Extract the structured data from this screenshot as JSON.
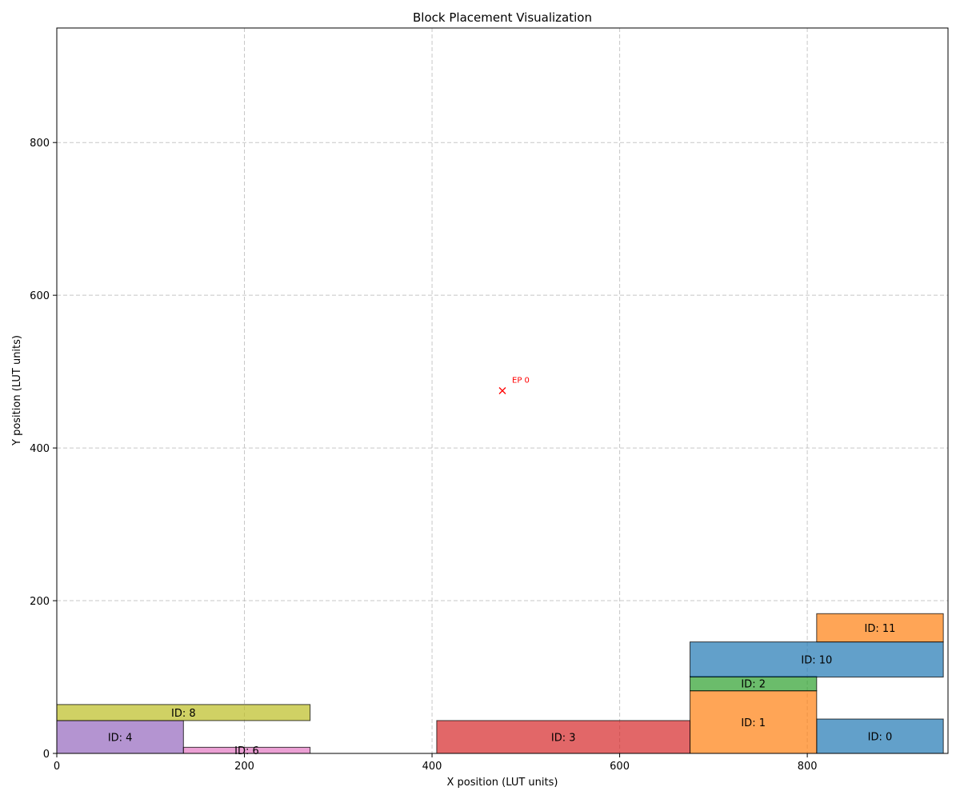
{
  "chart_data": {
    "type": "rectangles",
    "title": "Block Placement Visualization",
    "xlabel": "X position (LUT units)",
    "ylabel": "Y position (LUT units)",
    "xlim": [
      0,
      950
    ],
    "ylim": [
      0,
      950
    ],
    "xticks": [
      0,
      200,
      400,
      600,
      800
    ],
    "yticks": [
      0,
      200,
      400,
      600,
      800
    ],
    "grid": true,
    "blocks": [
      {
        "label": "ID: 0",
        "x": 810,
        "y": 0,
        "w": 135,
        "h": 45,
        "color": "#1f77b4"
      },
      {
        "label": "ID: 1",
        "x": 675,
        "y": 0,
        "w": 135,
        "h": 82,
        "color": "#ff7f0e"
      },
      {
        "label": "ID: 2",
        "x": 675,
        "y": 82,
        "w": 135,
        "h": 19,
        "color": "#2ca02c"
      },
      {
        "label": "ID: 3",
        "x": 405,
        "y": 0,
        "w": 270,
        "h": 43,
        "color": "#d62728"
      },
      {
        "label": "ID: 4",
        "x": 0,
        "y": 0,
        "w": 135,
        "h": 43,
        "color": "#9467bd"
      },
      {
        "label": "ID: 6",
        "x": 135,
        "y": 0,
        "w": 135,
        "h": 8,
        "color": "#e377c2"
      },
      {
        "label": "ID: 8",
        "x": 0,
        "y": 43,
        "w": 270,
        "h": 21,
        "color": "#bcbd22"
      },
      {
        "label": "ID: 10",
        "x": 675,
        "y": 100,
        "w": 270,
        "h": 46,
        "color": "#1f77b4"
      },
      {
        "label": "ID: 11",
        "x": 810,
        "y": 146,
        "w": 135,
        "h": 37,
        "color": "#ff7f0e"
      }
    ],
    "points": [
      {
        "label": "EP 0",
        "x": 475,
        "y": 475,
        "color": "#ff0000",
        "marker": "x"
      }
    ]
  }
}
